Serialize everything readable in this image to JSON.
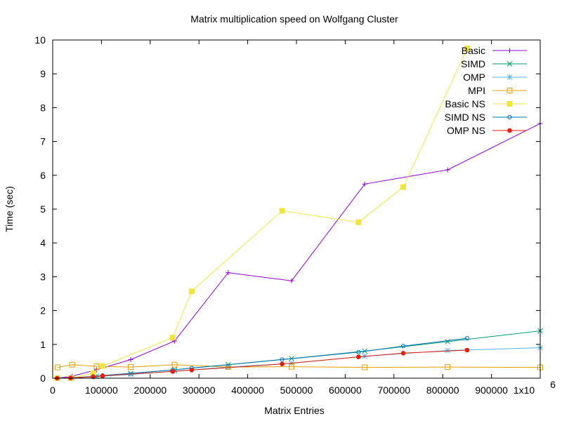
{
  "chart_data": {
    "type": "line",
    "title": "Matrix multiplication speed on Wolfgang Cluster",
    "xlabel": "Matrix Entries",
    "ylabel": "Time (sec)",
    "xlim": [
      0,
      1000000
    ],
    "ylim": [
      0,
      10
    ],
    "grid": false,
    "legend_position": "top-right",
    "x_ticks": [
      0,
      100000,
      200000,
      300000,
      400000,
      500000,
      600000,
      700000,
      800000,
      900000,
      1000000
    ],
    "x_tick_labels": [
      "0",
      "100000",
      "200000",
      "300000",
      "400000",
      "500000",
      "600000",
      "700000",
      "800000",
      "900000",
      "1x10"
    ],
    "x_tick_exponent": "6",
    "y_ticks": [
      0,
      1,
      2,
      3,
      4,
      5,
      6,
      7,
      8,
      9,
      10
    ],
    "y_tick_labels": [
      "0",
      "1",
      "2",
      "3",
      "4",
      "5",
      "6",
      "7",
      "8",
      "9",
      "10"
    ],
    "series": [
      {
        "name": "Basic",
        "color": "#9400d3",
        "marker": "plus",
        "points": [
          [
            10000,
            0.0
          ],
          [
            40000,
            0.06
          ],
          [
            90000,
            0.25
          ],
          [
            160000,
            0.55
          ],
          [
            250000,
            1.1
          ],
          [
            360000,
            3.12
          ],
          [
            490000,
            2.88
          ],
          [
            640000,
            5.74
          ],
          [
            810000,
            6.16
          ],
          [
            1000000,
            7.53
          ]
        ]
      },
      {
        "name": "SIMD",
        "color": "#009e73",
        "marker": "x",
        "points": [
          [
            10000,
            0.0
          ],
          [
            40000,
            0.01
          ],
          [
            90000,
            0.06
          ],
          [
            160000,
            0.14
          ],
          [
            250000,
            0.25
          ],
          [
            360000,
            0.4
          ],
          [
            490000,
            0.58
          ],
          [
            640000,
            0.8
          ],
          [
            810000,
            1.08
          ],
          [
            1000000,
            1.4
          ]
        ]
      },
      {
        "name": "OMP",
        "color": "#56b4e9",
        "marker": "star",
        "points": [
          [
            10000,
            0.0
          ],
          [
            40000,
            0.01
          ],
          [
            90000,
            0.05
          ],
          [
            160000,
            0.11
          ],
          [
            250000,
            0.21
          ],
          [
            360000,
            0.33
          ],
          [
            490000,
            0.44
          ],
          [
            640000,
            0.65
          ],
          [
            810000,
            0.82
          ],
          [
            1000000,
            0.9
          ]
        ]
      },
      {
        "name": "MPI",
        "color": "#e69f00",
        "marker": "square-open",
        "points": [
          [
            10000,
            0.32
          ],
          [
            40000,
            0.4
          ],
          [
            90000,
            0.35
          ],
          [
            160000,
            0.33
          ],
          [
            250000,
            0.4
          ],
          [
            360000,
            0.33
          ],
          [
            490000,
            0.34
          ],
          [
            640000,
            0.32
          ],
          [
            810000,
            0.33
          ],
          [
            1000000,
            0.32
          ]
        ]
      },
      {
        "name": "Basic NS",
        "color": "#f0e442",
        "marker": "square-filled",
        "points": [
          [
            9216,
            0.0
          ],
          [
            36864,
            0.0
          ],
          [
            82944,
            0.15
          ],
          [
            102400,
            0.36
          ],
          [
            246016,
            1.2
          ],
          [
            285156,
            2.57
          ],
          [
            470596,
            4.95
          ],
          [
            627264,
            4.61
          ],
          [
            719104,
            5.65
          ],
          [
            850000,
            9.75
          ]
        ]
      },
      {
        "name": "SIMD NS",
        "color": "#0072b2",
        "marker": "circle-open",
        "points": [
          [
            9216,
            0.0
          ],
          [
            36864,
            0.01
          ],
          [
            82944,
            0.05
          ],
          [
            102400,
            0.08
          ],
          [
            246016,
            0.24
          ],
          [
            285156,
            0.3
          ],
          [
            470596,
            0.55
          ],
          [
            627264,
            0.77
          ],
          [
            719104,
            0.95
          ],
          [
            850000,
            1.18
          ]
        ]
      },
      {
        "name": "OMP NS",
        "color": "#e51e10",
        "marker": "circle-filled",
        "points": [
          [
            9216,
            0.0
          ],
          [
            36864,
            0.01
          ],
          [
            82944,
            0.04
          ],
          [
            102400,
            0.07
          ],
          [
            246016,
            0.2
          ],
          [
            285156,
            0.24
          ],
          [
            470596,
            0.42
          ],
          [
            627264,
            0.63
          ],
          [
            719104,
            0.74
          ],
          [
            850000,
            0.83
          ]
        ]
      }
    ]
  }
}
